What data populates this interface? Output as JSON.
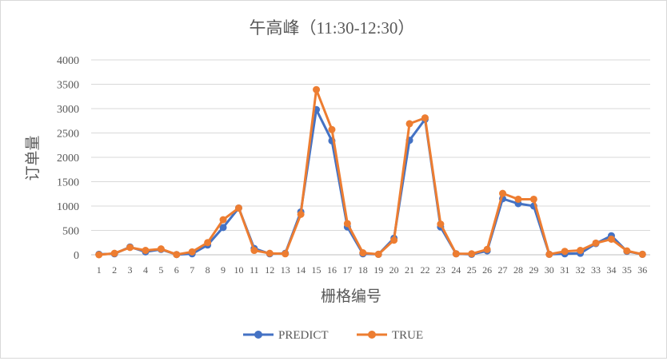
{
  "chart_data": {
    "type": "line",
    "title": "午高峰（11:30-12:30）",
    "xlabel": "栅格编号",
    "ylabel": "订单量",
    "ylim": [
      0,
      4000
    ],
    "yticks": [
      0,
      500,
      1000,
      1500,
      2000,
      2500,
      3000,
      3500,
      4000
    ],
    "grid": true,
    "legend_position": "bottom",
    "categories": [
      "1",
      "2",
      "3",
      "4",
      "5",
      "6",
      "7",
      "8",
      "9",
      "10",
      "11",
      "12",
      "13",
      "14",
      "15",
      "16",
      "17",
      "18",
      "19",
      "20",
      "21",
      "22",
      "23",
      "24",
      "25",
      "26",
      "27",
      "28",
      "29",
      "30",
      "31",
      "32",
      "33",
      "34",
      "35",
      "36"
    ],
    "series": [
      {
        "name": "PREDICT",
        "color": "#4472C4",
        "values": [
          10,
          20,
          160,
          60,
          110,
          5,
          20,
          200,
          560,
          960,
          130,
          20,
          30,
          880,
          2980,
          2340,
          570,
          20,
          10,
          340,
          2350,
          2780,
          570,
          20,
          10,
          80,
          1150,
          1050,
          1000,
          10,
          20,
          30,
          230,
          390,
          70,
          10
        ]
      },
      {
        "name": "TRUE",
        "color": "#ED7D31",
        "values": [
          0,
          30,
          150,
          90,
          120,
          5,
          60,
          250,
          720,
          960,
          90,
          30,
          20,
          830,
          3390,
          2570,
          640,
          40,
          10,
          300,
          2690,
          2810,
          630,
          20,
          20,
          110,
          1260,
          1140,
          1140,
          10,
          70,
          90,
          240,
          320,
          80,
          10
        ]
      }
    ]
  }
}
